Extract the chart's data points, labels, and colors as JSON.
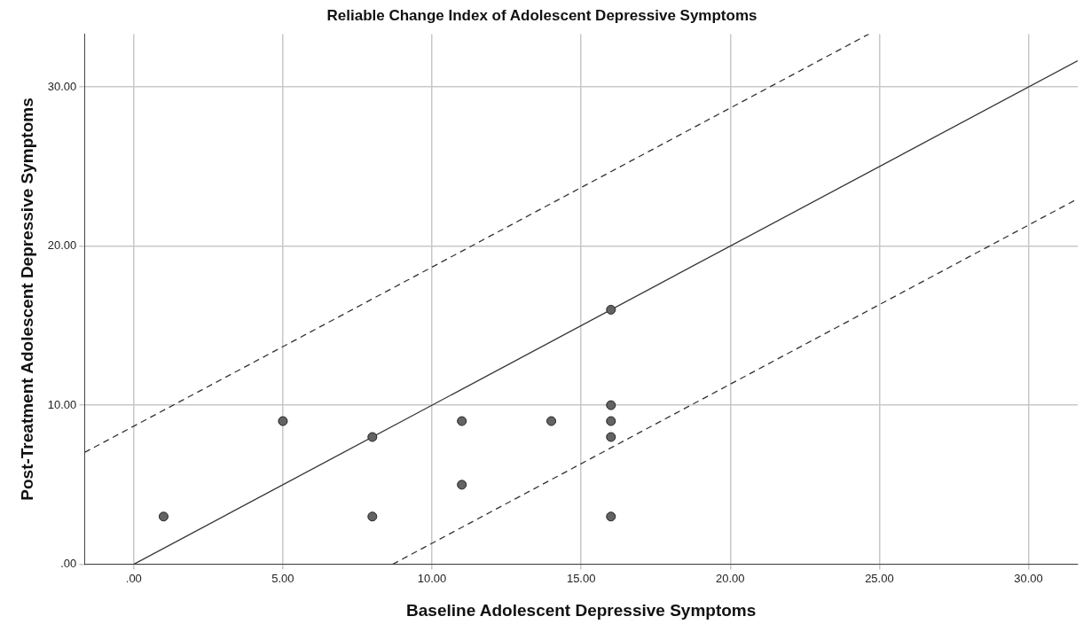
{
  "chart_data": {
    "type": "scatter",
    "title": "Reliable Change Index of Adolescent Depressive Symptoms",
    "xlabel": "Baseline Adolescent Depressive Symptoms",
    "ylabel": "Post-Treatment Adolescent Depressive Symptoms",
    "xlim": [
      -1.65,
      31.65
    ],
    "ylim": [
      0,
      33.33
    ],
    "xticks": [
      {
        "value": 0,
        "label": ".00"
      },
      {
        "value": 5,
        "label": "5.00"
      },
      {
        "value": 10,
        "label": "10.00"
      },
      {
        "value": 15,
        "label": "15.00"
      },
      {
        "value": 20,
        "label": "20.00"
      },
      {
        "value": 25,
        "label": "25.00"
      },
      {
        "value": 30,
        "label": "30.00"
      }
    ],
    "yticks": [
      {
        "value": 0,
        "label": ".00"
      },
      {
        "value": 10,
        "label": "10.00"
      },
      {
        "value": 20,
        "label": "20.00"
      },
      {
        "value": 30,
        "label": "30.00"
      }
    ],
    "grid": true,
    "series": [
      {
        "type": "scatter",
        "marker": "circle",
        "color": "#636363",
        "x": [
          1,
          5,
          8,
          8,
          11,
          11,
          14,
          16,
          16,
          16,
          16,
          16
        ],
        "values": [
          3,
          9,
          8,
          3,
          9,
          5,
          9,
          16,
          10,
          9,
          8,
          3
        ]
      },
      {
        "type": "line",
        "color": "#333333",
        "line_style": "solid",
        "marker": "none",
        "x": [
          0,
          31.65
        ],
        "values": [
          0,
          31.65
        ]
      },
      {
        "type": "line",
        "color": "#333333",
        "line_style": "dashed",
        "marker": "none",
        "x": [
          -1.65,
          24.65
        ],
        "values": [
          7.03,
          33.33
        ]
      },
      {
        "type": "line",
        "color": "#333333",
        "line_style": "dashed",
        "marker": "none",
        "x": [
          8.68,
          31.65
        ],
        "values": [
          0,
          22.97
        ]
      }
    ]
  }
}
